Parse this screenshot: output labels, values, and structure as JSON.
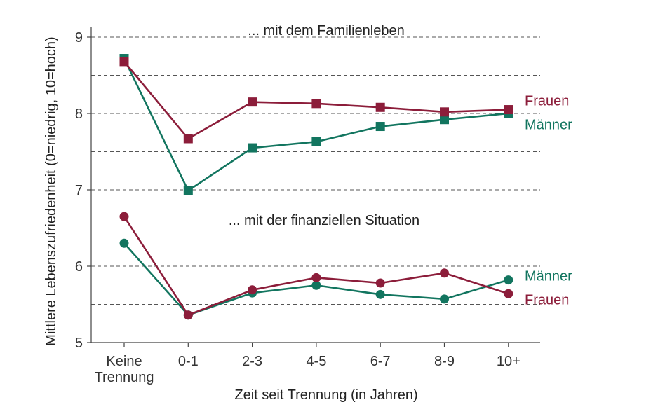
{
  "chart_data": {
    "type": "line",
    "xlabel": "Zeit seit Trennung (in Jahren)",
    "ylabel": "Mittlere Lebenszufriedenheit (0=niedrig, 10=hoch)",
    "ylim": [
      5,
      9
    ],
    "yticks": [
      5,
      6,
      7,
      8,
      9
    ],
    "categories": [
      [
        "Keine",
        "Trennung"
      ],
      [
        "0-1"
      ],
      [
        "2-3"
      ],
      [
        "4-5"
      ],
      [
        "6-7"
      ],
      [
        "8-9"
      ],
      [
        "10+"
      ]
    ],
    "annotations": [
      "... mit dem Familienleben",
      "... mit der finanziellen Situation"
    ],
    "panels": [
      {
        "title": "... mit dem Familienleben",
        "marker": "square",
        "series": [
          {
            "name": "Männer",
            "color": "#12755f",
            "values": [
              8.72,
              6.99,
              7.55,
              7.63,
              7.83,
              7.92,
              8.0
            ]
          },
          {
            "name": "Frauen",
            "color": "#8c1d3a",
            "values": [
              8.68,
              7.67,
              8.15,
              8.13,
              8.08,
              8.02,
              8.05
            ]
          }
        ]
      },
      {
        "title": "... mit der finanziellen Situation",
        "marker": "circle",
        "series": [
          {
            "name": "Männer",
            "color": "#12755f",
            "values": [
              6.3,
              5.36,
              5.65,
              5.75,
              5.63,
              5.57,
              5.82
            ]
          },
          {
            "name": "Frauen",
            "color": "#8c1d3a",
            "values": [
              6.65,
              5.36,
              5.69,
              5.85,
              5.78,
              5.91,
              5.64
            ]
          }
        ]
      }
    ]
  }
}
